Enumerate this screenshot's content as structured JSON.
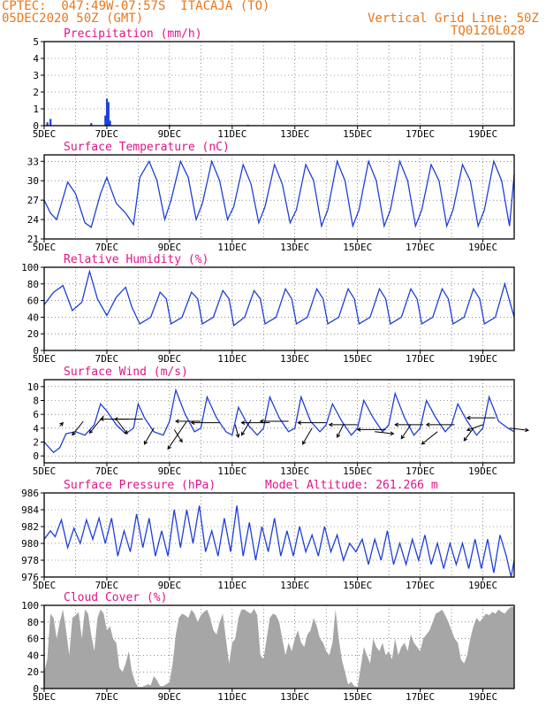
{
  "header": {
    "line1_left": "CPTEC:  047:49W-07:57S  ITACAJA (TO)",
    "line2_left": "05DEC2020 50Z (GMT)",
    "line1_right": "Vertical Grid Line: 50Z",
    "line2_right": "TQ0126L028"
  },
  "colors": {
    "header": "#e8771c",
    "panel_title": "#e0148c",
    "series": "#1f3fd8",
    "cloud": "#a6a6a6",
    "axis": "#000000"
  },
  "x_ticks": [
    "5DEC",
    "7DEC",
    "9DEC",
    "11DEC",
    "13DEC",
    "15DEC",
    "17DEC",
    "19DEC"
  ],
  "x_range_days": [
    5,
    20
  ],
  "chart_data": [
    {
      "id": "precip",
      "type": "bar",
      "title": "Precipitation (mm/h)",
      "ylim": [
        0,
        5
      ],
      "yticks": [
        0,
        1,
        2,
        3,
        4,
        5
      ],
      "x": [
        5.1,
        5.2,
        6.5,
        6.95,
        7.0,
        7.05,
        7.1,
        9.0,
        11.5,
        15.2
      ],
      "values": [
        0.2,
        0.4,
        0.15,
        0.6,
        1.6,
        1.4,
        0.3,
        0.05,
        0.05,
        0.03
      ]
    },
    {
      "id": "temp",
      "type": "line",
      "title": "Surface Temperature (nC)",
      "ylim": [
        21,
        34
      ],
      "yticks": [
        21,
        24,
        27,
        30,
        33
      ],
      "x": [
        5.0,
        5.2,
        5.4,
        5.75,
        6.0,
        6.3,
        6.5,
        6.8,
        7.0,
        7.3,
        7.6,
        7.85,
        8.05,
        8.35,
        8.6,
        8.85,
        9.05,
        9.35,
        9.6,
        9.85,
        10.05,
        10.35,
        10.6,
        10.85,
        11.05,
        11.35,
        11.6,
        11.85,
        12.05,
        12.35,
        12.6,
        12.85,
        13.05,
        13.35,
        13.6,
        13.85,
        14.05,
        14.35,
        14.6,
        14.85,
        15.05,
        15.35,
        15.6,
        15.85,
        16.05,
        16.35,
        16.6,
        16.85,
        17.05,
        17.35,
        17.6,
        17.85,
        18.05,
        18.35,
        18.6,
        18.85,
        19.05,
        19.35,
        19.6,
        19.85,
        20.0
      ],
      "values": [
        27.0,
        25.0,
        24.0,
        29.8,
        28.0,
        23.5,
        22.8,
        28.0,
        30.5,
        26.5,
        25.0,
        23.2,
        30.5,
        33.0,
        30.0,
        24.0,
        27.0,
        33.0,
        30.5,
        24.0,
        26.5,
        33.0,
        30.0,
        24.0,
        26.0,
        32.5,
        29.5,
        23.5,
        26.0,
        32.5,
        29.5,
        23.5,
        25.5,
        32.5,
        30.0,
        23.0,
        25.5,
        33.0,
        30.0,
        23.0,
        25.5,
        33.0,
        30.0,
        23.0,
        25.5,
        33.0,
        30.0,
        23.0,
        25.5,
        32.5,
        30.0,
        23.0,
        25.5,
        32.5,
        30.0,
        23.0,
        25.5,
        33.0,
        30.0,
        23.0,
        31.0
      ]
    },
    {
      "id": "rh",
      "type": "line",
      "title": "Relative Humidity (%)",
      "ylim": [
        0,
        100
      ],
      "yticks": [
        0,
        20,
        40,
        60,
        80,
        100
      ],
      "x": [
        5.0,
        5.3,
        5.6,
        5.9,
        6.2,
        6.45,
        6.7,
        7.0,
        7.3,
        7.6,
        7.8,
        8.05,
        8.4,
        8.7,
        8.9,
        9.05,
        9.4,
        9.7,
        9.9,
        10.05,
        10.4,
        10.7,
        10.9,
        11.05,
        11.4,
        11.7,
        11.9,
        12.05,
        12.4,
        12.7,
        12.9,
        13.05,
        13.4,
        13.7,
        13.9,
        14.05,
        14.4,
        14.7,
        14.9,
        15.05,
        15.4,
        15.7,
        15.9,
        16.05,
        16.4,
        16.7,
        16.9,
        17.05,
        17.4,
        17.7,
        17.9,
        18.05,
        18.4,
        18.7,
        18.9,
        19.05,
        19.4,
        19.7,
        20.0
      ],
      "values": [
        55,
        70,
        78,
        48,
        58,
        95,
        62,
        42,
        64,
        76,
        52,
        32,
        40,
        70,
        62,
        32,
        40,
        70,
        62,
        32,
        40,
        72,
        62,
        30,
        40,
        72,
        62,
        32,
        40,
        74,
        62,
        32,
        40,
        74,
        62,
        32,
        40,
        74,
        62,
        32,
        40,
        74,
        62,
        32,
        40,
        74,
        62,
        32,
        40,
        74,
        62,
        32,
        40,
        74,
        62,
        32,
        40,
        80,
        40
      ]
    },
    {
      "id": "wind",
      "type": "line",
      "title": "Surface Wind (m/s)",
      "ylim": [
        -1,
        11
      ],
      "yticks": [
        0,
        2,
        4,
        6,
        8,
        10
      ],
      "x": [
        5.0,
        5.3,
        5.5,
        5.7,
        6.0,
        6.3,
        6.6,
        6.8,
        7.0,
        7.3,
        7.6,
        7.85,
        8.0,
        8.2,
        8.5,
        8.8,
        9.0,
        9.2,
        9.5,
        9.8,
        10.0,
        10.2,
        10.5,
        10.8,
        11.0,
        11.2,
        11.5,
        11.8,
        12.0,
        12.2,
        12.5,
        12.8,
        13.0,
        13.2,
        13.5,
        13.8,
        14.0,
        14.2,
        14.5,
        14.8,
        15.0,
        15.2,
        15.5,
        15.8,
        16.0,
        16.2,
        16.5,
        16.8,
        17.0,
        17.2,
        17.5,
        17.8,
        18.0,
        18.2,
        18.5,
        18.8,
        19.0,
        19.2,
        19.5,
        19.8,
        20.0
      ],
      "values": [
        2.0,
        0.5,
        1.2,
        3.2,
        3.5,
        3.0,
        4.5,
        7.5,
        6.5,
        4.5,
        3.2,
        4.0,
        7.5,
        5.5,
        3.5,
        3.0,
        5.0,
        9.5,
        6.0,
        3.5,
        4.0,
        8.5,
        5.5,
        3.5,
        3.0,
        7.0,
        4.5,
        3.0,
        4.0,
        8.5,
        5.5,
        3.5,
        4.0,
        8.5,
        5.0,
        3.5,
        4.5,
        7.5,
        5.0,
        3.0,
        4.0,
        8.0,
        5.5,
        3.5,
        4.5,
        9.0,
        5.5,
        3.0,
        4.0,
        8.0,
        5.5,
        3.5,
        4.5,
        7.5,
        5.0,
        3.0,
        4.0,
        8.5,
        5.0,
        4.0,
        3.5
      ],
      "arrows": [
        {
          "x": 5.5,
          "y": 4.3,
          "dx": 0.1,
          "dy": 0.5
        },
        {
          "x": 6.25,
          "y": 5.0,
          "dx": -0.35,
          "dy": -2.0
        },
        {
          "x": 6.9,
          "y": 5.8,
          "dx": -0.45,
          "dy": -2.5
        },
        {
          "x": 7.35,
          "y": 5.0,
          "dx": 0.3,
          "dy": -1.8
        },
        {
          "x": 7.7,
          "y": 5.3,
          "dx": -0.9,
          "dy": 0.0
        },
        {
          "x": 8.15,
          "y": 5.3,
          "dx": -0.9,
          "dy": 0.0
        },
        {
          "x": 8.5,
          "y": 4.0,
          "dx": -0.3,
          "dy": -2.3
        },
        {
          "x": 9.15,
          "y": 3.8,
          "dx": 0.25,
          "dy": -1.8
        },
        {
          "x": 9.55,
          "y": 5.0,
          "dx": -0.6,
          "dy": -4.0
        },
        {
          "x": 10.0,
          "y": 5.0,
          "dx": -0.8,
          "dy": 0.0
        },
        {
          "x": 10.6,
          "y": 4.8,
          "dx": -0.9,
          "dy": 0.0
        },
        {
          "x": 11.1,
          "y": 4.5,
          "dx": 0.1,
          "dy": -1.8
        },
        {
          "x": 11.6,
          "y": 5.2,
          "dx": -0.3,
          "dy": -2.2
        },
        {
          "x": 12.2,
          "y": 4.8,
          "dx": -0.9,
          "dy": 0.0
        },
        {
          "x": 12.8,
          "y": 5.0,
          "dx": -0.9,
          "dy": 0.0
        },
        {
          "x": 13.55,
          "y": 4.0,
          "dx": -0.3,
          "dy": -2.3
        },
        {
          "x": 14.0,
          "y": 4.8,
          "dx": -0.9,
          "dy": 0.0
        },
        {
          "x": 14.55,
          "y": 4.5,
          "dx": -0.2,
          "dy": -1.8
        },
        {
          "x": 15.0,
          "y": 4.5,
          "dx": -0.9,
          "dy": 0.0
        },
        {
          "x": 15.55,
          "y": 3.5,
          "dx": 0.6,
          "dy": -0.3
        },
        {
          "x": 15.9,
          "y": 3.8,
          "dx": -0.9,
          "dy": 0.0
        },
        {
          "x": 16.7,
          "y": 4.5,
          "dx": -0.3,
          "dy": -2.0
        },
        {
          "x": 17.1,
          "y": 4.5,
          "dx": -0.9,
          "dy": 0.0
        },
        {
          "x": 17.55,
          "y": 3.5,
          "dx": -0.5,
          "dy": -1.8
        },
        {
          "x": 18.1,
          "y": 4.5,
          "dx": -0.9,
          "dy": 0.0
        },
        {
          "x": 18.7,
          "y": 4.0,
          "dx": -0.3,
          "dy": -1.8
        },
        {
          "x": 19.0,
          "y": 4.5,
          "dx": -0.5,
          "dy": -0.8
        },
        {
          "x": 19.4,
          "y": 5.5,
          "dx": -0.9,
          "dy": 0.0
        },
        {
          "x": 19.85,
          "y": 4.0,
          "dx": 0.6,
          "dy": -0.3
        }
      ]
    },
    {
      "id": "press",
      "type": "line",
      "title": "Surface Pressure (hPa)",
      "annotation": "Model Altitude: 261.266 m",
      "ylim": [
        976,
        986
      ],
      "yticks": [
        976,
        978,
        980,
        982,
        984,
        986
      ],
      "x": [
        5.0,
        5.2,
        5.35,
        5.55,
        5.75,
        5.95,
        6.15,
        6.35,
        6.55,
        6.75,
        6.95,
        7.15,
        7.35,
        7.55,
        7.75,
        7.95,
        8.15,
        8.35,
        8.55,
        8.75,
        8.95,
        9.15,
        9.35,
        9.55,
        9.75,
        9.95,
        10.15,
        10.35,
        10.55,
        10.75,
        10.95,
        11.15,
        11.35,
        11.55,
        11.75,
        11.95,
        12.15,
        12.35,
        12.55,
        12.75,
        12.95,
        13.15,
        13.35,
        13.55,
        13.75,
        13.95,
        14.15,
        14.35,
        14.55,
        14.75,
        14.95,
        15.15,
        15.35,
        15.55,
        15.75,
        15.95,
        16.15,
        16.35,
        16.55,
        16.75,
        16.95,
        17.15,
        17.35,
        17.55,
        17.75,
        17.95,
        18.15,
        18.35,
        18.55,
        18.75,
        18.95,
        19.15,
        19.35,
        19.55,
        19.75,
        19.9,
        20.0
      ],
      "values": [
        980.5,
        981.5,
        980.8,
        982.8,
        979.5,
        981.8,
        980.0,
        982.8,
        980.5,
        983.0,
        980.0,
        983.0,
        978.5,
        981.5,
        979.0,
        983.5,
        979.5,
        983.0,
        978.5,
        981.5,
        978.5,
        984.0,
        979.5,
        984.0,
        980.0,
        984.5,
        979.0,
        981.5,
        978.5,
        983.0,
        979.0,
        984.5,
        978.5,
        982.5,
        978.0,
        982.0,
        979.0,
        983.0,
        978.5,
        981.5,
        978.5,
        982.0,
        979.0,
        981.0,
        978.5,
        982.0,
        979.0,
        981.0,
        978.0,
        980.0,
        979.0,
        980.5,
        977.5,
        980.5,
        978.0,
        981.5,
        977.5,
        980.0,
        977.5,
        980.5,
        978.0,
        981.0,
        977.5,
        980.0,
        977.0,
        980.0,
        977.5,
        980.0,
        977.0,
        980.5,
        977.0,
        980.5,
        976.5,
        981.0,
        978.5,
        976.0,
        978.0
      ]
    },
    {
      "id": "cloud",
      "type": "area",
      "title": "Cloud Cover (%)",
      "ylim": [
        0,
        100
      ],
      "yticks": [
        0,
        20,
        40,
        60,
        80,
        100
      ],
      "x": [
        5.0,
        5.1,
        5.2,
        5.3,
        5.4,
        5.5,
        5.6,
        5.7,
        5.8,
        5.9,
        6.0,
        6.1,
        6.2,
        6.3,
        6.4,
        6.5,
        6.6,
        6.7,
        6.8,
        6.9,
        7.0,
        7.1,
        7.2,
        7.3,
        7.4,
        7.5,
        7.6,
        7.7,
        7.8,
        7.9,
        8.0,
        8.1,
        8.2,
        8.3,
        8.4,
        8.5,
        8.6,
        8.7,
        8.8,
        8.9,
        9.0,
        9.1,
        9.2,
        9.3,
        9.4,
        9.5,
        9.6,
        9.7,
        9.8,
        9.9,
        10.0,
        10.1,
        10.2,
        10.3,
        10.4,
        10.5,
        10.6,
        10.7,
        10.8,
        10.9,
        11.0,
        11.1,
        11.2,
        11.3,
        11.4,
        11.5,
        11.6,
        11.7,
        11.8,
        11.9,
        12.0,
        12.1,
        12.2,
        12.3,
        12.4,
        12.5,
        12.6,
        12.7,
        12.8,
        12.9,
        13.0,
        13.1,
        13.2,
        13.3,
        13.4,
        13.5,
        13.6,
        13.7,
        13.8,
        13.9,
        14.0,
        14.1,
        14.2,
        14.3,
        14.4,
        14.5,
        14.6,
        14.7,
        14.8,
        14.9,
        15.0,
        15.1,
        15.2,
        15.3,
        15.4,
        15.5,
        15.6,
        15.7,
        15.8,
        15.9,
        16.0,
        16.1,
        16.2,
        16.3,
        16.4,
        16.5,
        16.6,
        16.7,
        16.8,
        16.9,
        17.0,
        17.1,
        17.2,
        17.3,
        17.4,
        17.5,
        17.6,
        17.7,
        17.8,
        17.9,
        18.0,
        18.1,
        18.2,
        18.3,
        18.4,
        18.5,
        18.6,
        18.7,
        18.8,
        18.9,
        19.0,
        19.1,
        19.2,
        19.3,
        19.4,
        19.5,
        19.6,
        19.7,
        19.8,
        19.9,
        20.0
      ],
      "values": [
        20,
        35,
        90,
        85,
        60,
        80,
        95,
        70,
        40,
        85,
        88,
        92,
        60,
        95,
        90,
        65,
        45,
        85,
        95,
        90,
        70,
        75,
        60,
        55,
        25,
        20,
        30,
        45,
        20,
        8,
        2,
        2,
        3,
        5,
        4,
        15,
        10,
        3,
        3,
        5,
        8,
        30,
        65,
        85,
        90,
        88,
        85,
        95,
        90,
        80,
        88,
        92,
        95,
        85,
        70,
        65,
        80,
        90,
        60,
        30,
        55,
        60,
        85,
        95,
        95,
        92,
        90,
        96,
        88,
        40,
        35,
        60,
        85,
        90,
        88,
        80,
        60,
        40,
        55,
        45,
        60,
        70,
        55,
        50,
        65,
        70,
        85,
        75,
        60,
        55,
        45,
        40,
        55,
        95,
        60,
        35,
        20,
        5,
        8,
        3,
        2,
        25,
        50,
        40,
        30,
        60,
        50,
        45,
        55,
        40,
        45,
        35,
        60,
        40,
        50,
        55,
        45,
        65,
        55,
        50,
        45,
        60,
        65,
        70,
        80,
        90,
        92,
        95,
        88,
        80,
        70,
        60,
        55,
        35,
        30,
        40,
        60,
        75,
        85,
        80,
        85,
        90,
        88,
        92,
        90,
        95,
        92,
        90,
        95,
        98,
        98
      ]
    }
  ]
}
